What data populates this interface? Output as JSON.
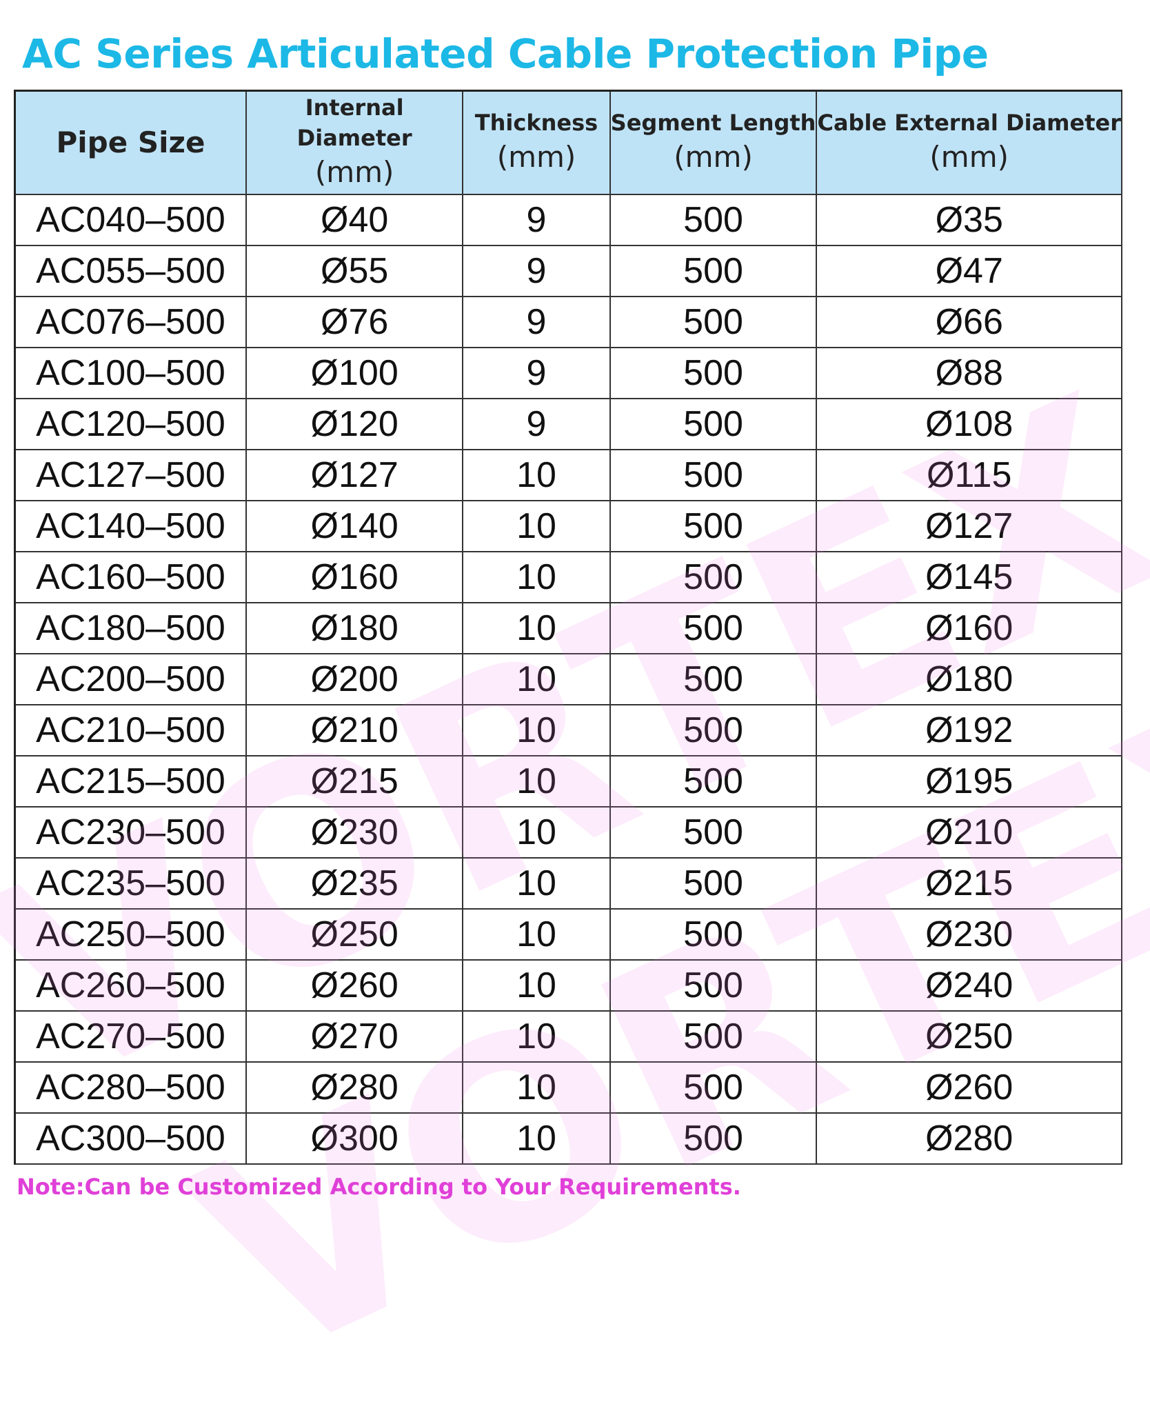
{
  "title": "AC Series Articulated Cable Protection Pipe",
  "colors": {
    "title": "#1cb8e6",
    "header_bg": "#bfe3f6",
    "note": "#e040d8",
    "watermark": "#f078e6"
  },
  "watermark": "VORTEX",
  "table": {
    "headers": [
      {
        "label": "Pipe Size",
        "unit": ""
      },
      {
        "label": "Internal Diameter",
        "unit": "(mm)"
      },
      {
        "label": "Thickness",
        "unit": "(mm)"
      },
      {
        "label": "Segment Length",
        "unit": "(mm)"
      },
      {
        "label": "Cable External Diameter",
        "unit": "(mm)"
      }
    ],
    "rows": [
      [
        "AC040–500",
        "Ø40",
        "9",
        "500",
        "Ø35"
      ],
      [
        "AC055–500",
        "Ø55",
        "9",
        "500",
        "Ø47"
      ],
      [
        "AC076–500",
        "Ø76",
        "9",
        "500",
        "Ø66"
      ],
      [
        "AC100–500",
        "Ø100",
        "9",
        "500",
        "Ø88"
      ],
      [
        "AC120–500",
        "Ø120",
        "9",
        "500",
        "Ø108"
      ],
      [
        "AC127–500",
        "Ø127",
        "10",
        "500",
        "Ø115"
      ],
      [
        "AC140–500",
        "Ø140",
        "10",
        "500",
        "Ø127"
      ],
      [
        "AC160–500",
        "Ø160",
        "10",
        "500",
        "Ø145"
      ],
      [
        "AC180–500",
        "Ø180",
        "10",
        "500",
        "Ø160"
      ],
      [
        "AC200–500",
        "Ø200",
        "10",
        "500",
        "Ø180"
      ],
      [
        "AC210–500",
        "Ø210",
        "10",
        "500",
        "Ø192"
      ],
      [
        "AC215–500",
        "Ø215",
        "10",
        "500",
        "Ø195"
      ],
      [
        "AC230–500",
        "Ø230",
        "10",
        "500",
        "Ø210"
      ],
      [
        "AC235–500",
        "Ø235",
        "10",
        "500",
        "Ø215"
      ],
      [
        "AC250–500",
        "Ø250",
        "10",
        "500",
        "Ø230"
      ],
      [
        "AC260–500",
        "Ø260",
        "10",
        "500",
        "Ø240"
      ],
      [
        "AC270–500",
        "Ø270",
        "10",
        "500",
        "Ø250"
      ],
      [
        "AC280–500",
        "Ø280",
        "10",
        "500",
        "Ø260"
      ],
      [
        "AC300–500",
        "Ø300",
        "10",
        "500",
        "Ø280"
      ]
    ]
  },
  "note": "Note:Can be Customized According to Your Requirements."
}
